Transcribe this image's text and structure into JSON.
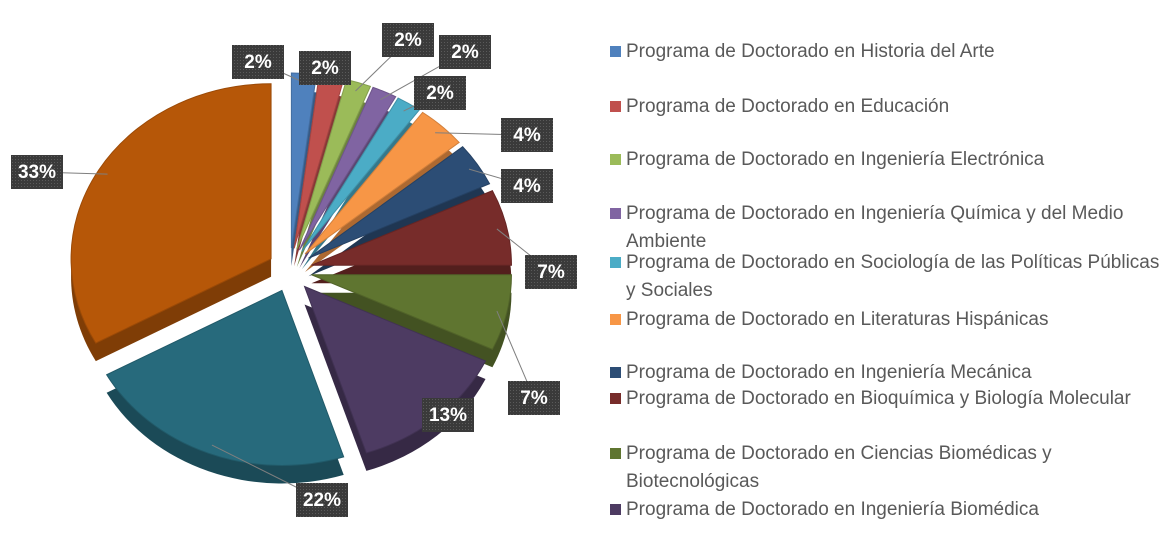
{
  "chart_data": {
    "type": "pie",
    "categories": [
      "Programa de Doctorado en Historia del Arte",
      "Programa de Doctorado en Educación",
      "Programa de Doctorado en Ingeniería Electrónica",
      "Programa de Doctorado en Ingeniería Química y del Medio Ambiente",
      "Programa de Doctorado en Sociología de las Políticas Públicas y Sociales",
      "Programa de Doctorado en Literaturas Hispánicas",
      "Programa de Doctorado en Ingeniería Mecánica",
      "Programa de Doctorado en Bioquímica y Biología Molecular",
      "Programa de Doctorado en Ciencias Biomédicas y Biotecnológicas",
      "Programa de Doctorado en Ingeniería Biomédica",
      null,
      null
    ],
    "values": [
      2,
      2,
      2,
      2,
      2,
      4,
      4,
      7,
      7,
      13,
      22,
      33
    ],
    "value_labels": [
      "2%",
      "2%",
      "2%",
      "2%",
      "2%",
      "4%",
      "4%",
      "7%",
      "7%",
      "13%",
      "22%",
      "33%"
    ],
    "colors": [
      "#4F81BD",
      "#C0504D",
      "#9BBB59",
      "#8064A2",
      "#4BACC6",
      "#F79646",
      "#2C4D75",
      "#772C2A",
      "#5F7530",
      "#4D3B62",
      "#276A7C",
      "#B65708"
    ]
  }
}
